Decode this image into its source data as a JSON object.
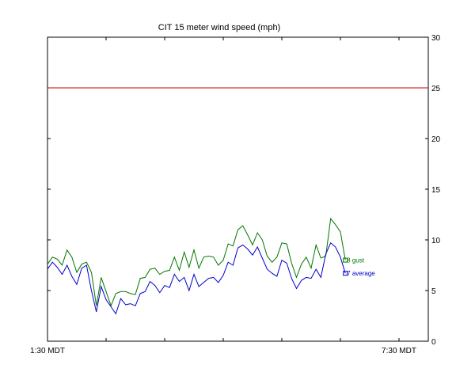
{
  "chart_data": {
    "type": "line",
    "title": "CIT 15 meter wind speed (mph)",
    "xlabel": "",
    "ylabel": "",
    "x_tick_labels": [
      "1:30 MDT",
      "7:30 MDT"
    ],
    "x_range_hours": [
      1.5,
      8.0
    ],
    "y_range": [
      0,
      30
    ],
    "y_ticks": [
      0,
      5,
      10,
      15,
      20,
      25,
      30
    ],
    "y_axis_side": "right",
    "threshold": {
      "value": 25,
      "color": "#cc0000"
    },
    "grid": false,
    "x_start_hour": 1.5,
    "x_step_minutes": 5,
    "series": [
      {
        "name": "gust",
        "end_label": "8 gust",
        "color": "#007700",
        "values": [
          7.6,
          8.3,
          8.1,
          7.5,
          9.0,
          8.3,
          6.8,
          7.6,
          7.8,
          6.8,
          3.5,
          6.3,
          4.9,
          3.5,
          4.7,
          4.9,
          4.9,
          4.7,
          4.6,
          6.2,
          6.3,
          7.1,
          7.2,
          6.6,
          6.9,
          7.0,
          8.3,
          7.0,
          8.8,
          7.3,
          9.0,
          7.2,
          8.3,
          8.4,
          8.3,
          7.5,
          8.0,
          9.6,
          9.4,
          11.0,
          11.4,
          10.5,
          9.5,
          10.7,
          10.0,
          8.4,
          7.8,
          8.3,
          9.7,
          9.6,
          7.7,
          6.3,
          7.6,
          8.3,
          7.2,
          9.5,
          8.2,
          8.4,
          12.1,
          11.5,
          10.8,
          8.0
        ]
      },
      {
        "name": "average",
        "end_label": "7 average",
        "color": "#0000cc",
        "values": [
          7.1,
          7.8,
          7.3,
          6.6,
          7.5,
          6.4,
          5.6,
          7.2,
          7.5,
          5.0,
          2.9,
          5.4,
          4.1,
          3.4,
          2.7,
          4.2,
          3.6,
          3.7,
          3.5,
          4.7,
          4.9,
          5.9,
          5.5,
          4.8,
          5.5,
          5.3,
          6.6,
          5.9,
          6.3,
          5.0,
          6.6,
          5.4,
          5.8,
          6.2,
          6.3,
          5.8,
          6.5,
          7.8,
          7.5,
          9.2,
          9.5,
          9.1,
          8.5,
          9.3,
          8.2,
          7.1,
          6.7,
          6.4,
          8.0,
          7.7,
          6.2,
          5.2,
          6.0,
          6.3,
          6.2,
          7.1,
          6.3,
          8.6,
          9.7,
          9.3,
          8.3,
          6.7
        ]
      }
    ]
  }
}
